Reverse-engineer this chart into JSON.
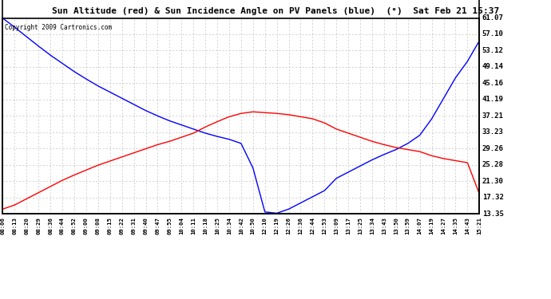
{
  "title": "Sun Altitude (red) & Sun Incidence Angle on PV Panels (blue)  (°)  Sat Feb 21 15:37",
  "copyright": "Copyright 2009 Cartronics.com",
  "yticks": [
    13.35,
    17.32,
    21.3,
    25.28,
    29.26,
    33.23,
    37.21,
    41.19,
    45.16,
    49.14,
    53.12,
    57.1,
    61.07
  ],
  "xtick_labels": [
    "08:06",
    "08:13",
    "08:20",
    "08:29",
    "08:36",
    "08:44",
    "08:52",
    "09:00",
    "09:08",
    "09:15",
    "09:22",
    "09:31",
    "09:40",
    "09:47",
    "09:55",
    "10:04",
    "10:11",
    "10:18",
    "10:25",
    "10:34",
    "10:42",
    "10:50",
    "12:10",
    "12:19",
    "12:26",
    "12:36",
    "12:44",
    "12:53",
    "13:09",
    "13:17",
    "13:25",
    "13:34",
    "13:43",
    "13:50",
    "13:59",
    "14:07",
    "14:19",
    "14:27",
    "14:35",
    "14:43",
    "15:21"
  ],
  "bg_color": "#ffffff",
  "grid_color": "#c0c0c0",
  "red_line_color": "#ff0000",
  "blue_line_color": "#0000ff",
  "border_color": "#000000",
  "red_data_y": [
    14.5,
    15.5,
    17.0,
    18.5,
    20.0,
    21.5,
    22.8,
    24.0,
    25.2,
    26.2,
    27.2,
    28.2,
    29.2,
    30.2,
    31.0,
    32.0,
    33.0,
    34.5,
    35.8,
    37.0,
    37.8,
    38.2,
    38.0,
    37.8,
    37.5,
    37.0,
    36.5,
    35.5,
    34.0,
    33.0,
    32.0,
    31.0,
    30.2,
    29.5,
    29.0,
    28.5,
    27.5,
    26.8,
    26.3,
    25.8,
    18.2
  ],
  "blue_data_y": [
    61.0,
    58.8,
    56.5,
    54.2,
    52.0,
    50.0,
    48.0,
    46.2,
    44.5,
    43.0,
    41.5,
    40.0,
    38.5,
    37.2,
    36.0,
    35.0,
    34.0,
    33.0,
    32.2,
    31.5,
    30.5,
    24.5,
    13.8,
    13.5,
    14.5,
    16.0,
    17.5,
    19.0,
    22.0,
    23.5,
    25.0,
    26.5,
    27.8,
    29.0,
    30.5,
    32.5,
    36.5,
    41.5,
    46.5,
    50.5,
    55.5
  ]
}
